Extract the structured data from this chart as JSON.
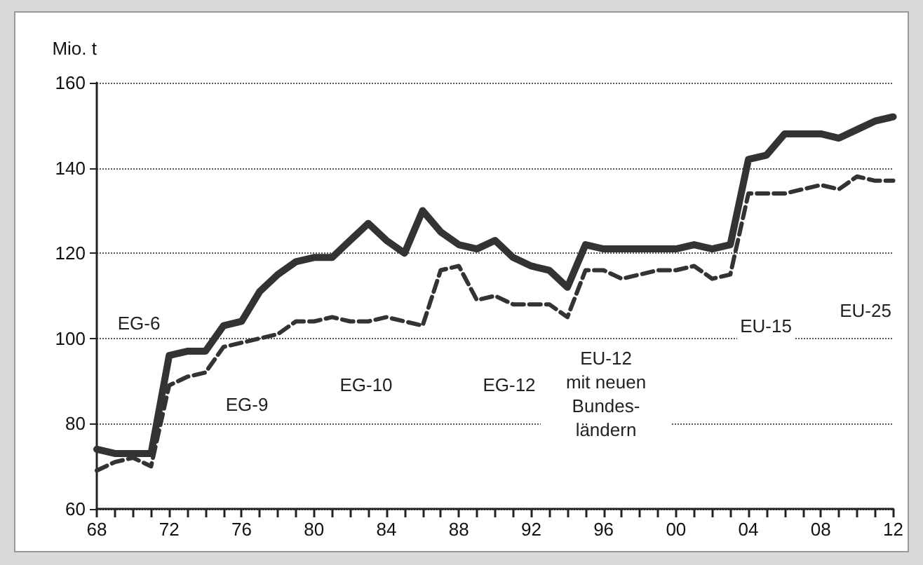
{
  "chart_data": {
    "type": "line",
    "ylabel": "Mio. t",
    "x": [
      1968,
      1969,
      1970,
      1971,
      1972,
      1973,
      1974,
      1975,
      1976,
      1977,
      1978,
      1979,
      1980,
      1981,
      1982,
      1983,
      1984,
      1985,
      1986,
      1987,
      1988,
      1989,
      1990,
      1991,
      1992,
      1993,
      1994,
      1995,
      1996,
      1997,
      1998,
      1999,
      2000,
      2001,
      2002,
      2003,
      2004,
      2005,
      2006,
      2007,
      2008,
      2009,
      2010,
      2011,
      2012
    ],
    "series": [
      {
        "color": "#333333",
        "line_style": "solid",
        "values": [
          74,
          73,
          73,
          73,
          96,
          97,
          97,
          103,
          104,
          111,
          115,
          118,
          119,
          119,
          123,
          127,
          123,
          120,
          130,
          125,
          122,
          121,
          123,
          119,
          117,
          116,
          112,
          122,
          121,
          121,
          121,
          121,
          121,
          122,
          121,
          122,
          142,
          143,
          148,
          148,
          148,
          147,
          149,
          151,
          152
        ]
      },
      {
        "color": "#333333",
        "line_style": "dashed",
        "values": [
          69,
          71,
          72,
          70,
          89,
          91,
          92,
          98,
          99,
          100,
          101,
          104,
          104,
          105,
          104,
          104,
          105,
          104,
          103,
          116,
          117,
          109,
          110,
          108,
          108,
          108,
          105,
          116,
          116,
          114,
          115,
          116,
          116,
          117,
          114,
          115,
          134,
          134,
          134,
          135,
          136,
          135,
          138,
          137,
          137
        ]
      }
    ],
    "xlim": [
      1968,
      2012
    ],
    "xticks": [
      {
        "value": 1968,
        "label": "68"
      },
      {
        "value": 1969,
        "label": null
      },
      {
        "value": 1970,
        "label": null
      },
      {
        "value": 1971,
        "label": null
      },
      {
        "value": 1972,
        "label": "72"
      },
      {
        "value": 1973,
        "label": null
      },
      {
        "value": 1974,
        "label": null
      },
      {
        "value": 1975,
        "label": null
      },
      {
        "value": 1976,
        "label": "76"
      },
      {
        "value": 1977,
        "label": null
      },
      {
        "value": 1978,
        "label": null
      },
      {
        "value": 1979,
        "label": null
      },
      {
        "value": 1980,
        "label": "80"
      },
      {
        "value": 1981,
        "label": null
      },
      {
        "value": 1982,
        "label": null
      },
      {
        "value": 1983,
        "label": null
      },
      {
        "value": 1984,
        "label": "84"
      },
      {
        "value": 1985,
        "label": null
      },
      {
        "value": 1986,
        "label": null
      },
      {
        "value": 1987,
        "label": null
      },
      {
        "value": 1988,
        "label": "88"
      },
      {
        "value": 1989,
        "label": null
      },
      {
        "value": 1990,
        "label": null
      },
      {
        "value": 1991,
        "label": null
      },
      {
        "value": 1992,
        "label": "92"
      },
      {
        "value": 1993,
        "label": null
      },
      {
        "value": 1994,
        "label": null
      },
      {
        "value": 1995,
        "label": null
      },
      {
        "value": 1996,
        "label": "96"
      },
      {
        "value": 1997,
        "label": null
      },
      {
        "value": 1998,
        "label": null
      },
      {
        "value": 1999,
        "label": null
      },
      {
        "value": 2000,
        "label": "00"
      },
      {
        "value": 2001,
        "label": null
      },
      {
        "value": 2002,
        "label": null
      },
      {
        "value": 2003,
        "label": null
      },
      {
        "value": 2004,
        "label": "04"
      },
      {
        "value": 2005,
        "label": null
      },
      {
        "value": 2006,
        "label": null
      },
      {
        "value": 2007,
        "label": null
      },
      {
        "value": 2008,
        "label": "08"
      },
      {
        "value": 2009,
        "label": null
      },
      {
        "value": 2010,
        "label": null
      },
      {
        "value": 2011,
        "label": null
      },
      {
        "value": 2012,
        "label": "12"
      }
    ],
    "ylim": [
      60,
      160
    ],
    "yticks": [
      60,
      80,
      100,
      120,
      140,
      160
    ],
    "grid": "y",
    "marker": "none",
    "annotations": [
      "EG-6",
      "EG-9",
      "EG-10",
      "EG-12",
      "EU-12\nmit neuen\nBundes-\nländern",
      "EU-15",
      "EU-25"
    ]
  }
}
